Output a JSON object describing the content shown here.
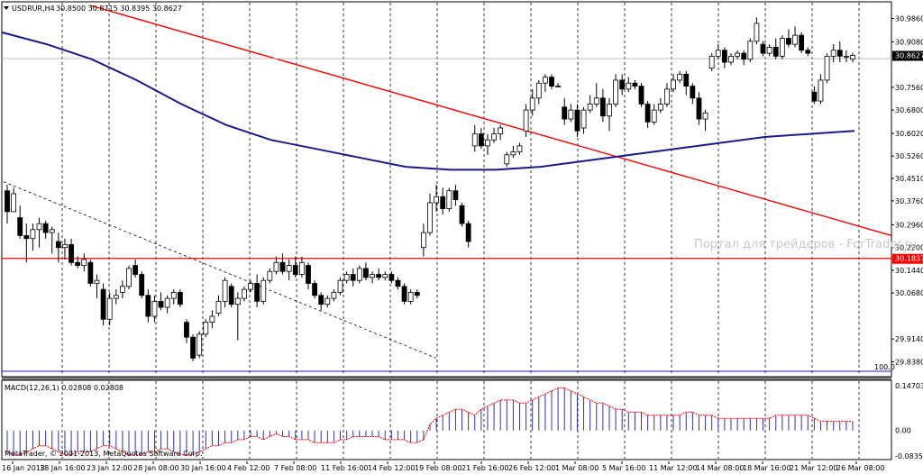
{
  "header": {
    "symbol_text": "USDRUR,H4",
    "ohlc_text": "30.8500 30.8715 30.8395 30.8627"
  },
  "watermark": "Портал для трейдеров - ForTrader.ru",
  "indicator": {
    "label_text": "MACD(12,26,1) 0.02808 0.02808",
    "copyright": "MetaTrader, © 2001-2013, MetaQuotes Software Corp.",
    "axis_labels": [
      "0.14703",
      "0.00",
      "-0.08357"
    ]
  },
  "price_axis": {
    "labels": [
      "30.9860",
      "30.9080",
      "30.7560",
      "30.6800",
      "30.6020",
      "30.5260",
      "30.4510",
      "30.3760",
      "30.2960",
      "30.2200",
      "30.1440",
      "30.0680",
      "29.9140",
      "29.8380"
    ],
    "current_price": "30.8627",
    "hline_price": "30.1837"
  },
  "fib_label": "100.0",
  "time_axis": [
    "16 Jan 2013",
    "18 Jan 16:00",
    "23 Jan 12:00",
    "28 Jan 08:00",
    "30 Jan 16:00",
    "4 Feb 12:00",
    "7 Feb 08:00",
    "11 Feb 16:00",
    "14 Feb 12:00",
    "19 Feb 08:00",
    "21 Feb 16:00",
    "26 Feb 12:00",
    "1 Mar 08:00",
    "5 Mar 16:00",
    "11 Mar 12:00",
    "14 Mar 08:00",
    "18 Mar 16:00",
    "21 Mar 12:00",
    "26 Mar 08:00"
  ],
  "colors": {
    "trendline": "#ff0000",
    "moving_average": "#1a1a8c",
    "support_line": "#ff0000",
    "macd_positive": "#3333aa",
    "macd_signal": "#ff0000",
    "grid": "#000000"
  },
  "chart_data": {
    "type": "candlestick",
    "symbol": "USDRUR",
    "timeframe": "H4",
    "y_range": [
      29.8,
      31.03
    ],
    "horizontal_line": 30.1837,
    "candles": [
      {
        "o": 30.41,
        "h": 30.43,
        "l": 30.3,
        "c": 30.34
      },
      {
        "o": 30.34,
        "h": 30.42,
        "l": 30.35,
        "c": 30.4
      },
      {
        "o": 30.32,
        "h": 30.36,
        "l": 30.25,
        "c": 30.26
      },
      {
        "o": 30.26,
        "h": 30.3,
        "l": 30.17,
        "c": 30.25
      },
      {
        "o": 30.25,
        "h": 30.3,
        "l": 30.21,
        "c": 30.28
      },
      {
        "o": 30.28,
        "h": 30.32,
        "l": 30.22,
        "c": 30.3
      },
      {
        "o": 30.3,
        "h": 30.31,
        "l": 30.25,
        "c": 30.27
      },
      {
        "o": 30.27,
        "h": 30.29,
        "l": 30.2,
        "c": 30.28
      },
      {
        "o": 30.24,
        "h": 30.27,
        "l": 30.17,
        "c": 30.22
      },
      {
        "o": 30.22,
        "h": 30.25,
        "l": 30.18,
        "c": 30.23
      },
      {
        "o": 30.23,
        "h": 30.25,
        "l": 30.16,
        "c": 30.17
      },
      {
        "o": 30.17,
        "h": 30.19,
        "l": 30.15,
        "c": 30.16
      },
      {
        "o": 30.16,
        "h": 30.2,
        "l": 30.14,
        "c": 30.18
      },
      {
        "o": 30.17,
        "h": 30.18,
        "l": 30.09,
        "c": 30.1
      },
      {
        "o": 30.1,
        "h": 30.13,
        "l": 30.05,
        "c": 30.11
      },
      {
        "o": 30.08,
        "h": 30.1,
        "l": 29.96,
        "c": 29.98
      },
      {
        "o": 29.98,
        "h": 30.07,
        "l": 29.96,
        "c": 30.05
      },
      {
        "o": 30.05,
        "h": 30.08,
        "l": 30.03,
        "c": 30.06
      },
      {
        "o": 30.07,
        "h": 30.11,
        "l": 30.05,
        "c": 30.09
      },
      {
        "o": 30.09,
        "h": 30.16,
        "l": 30.08,
        "c": 30.15
      },
      {
        "o": 30.16,
        "h": 30.18,
        "l": 30.12,
        "c": 30.13
      },
      {
        "o": 30.13,
        "h": 30.14,
        "l": 30.05,
        "c": 30.06
      },
      {
        "o": 30.06,
        "h": 30.08,
        "l": 29.97,
        "c": 29.99
      },
      {
        "o": 29.99,
        "h": 30.06,
        "l": 29.97,
        "c": 30.04
      },
      {
        "o": 30.04,
        "h": 30.07,
        "l": 30.01,
        "c": 30.02
      },
      {
        "o": 30.02,
        "h": 30.06,
        "l": 30.0,
        "c": 30.05
      },
      {
        "o": 30.05,
        "h": 30.08,
        "l": 30.03,
        "c": 30.07
      },
      {
        "o": 30.07,
        "h": 30.08,
        "l": 30.02,
        "c": 30.03
      },
      {
        "o": 29.97,
        "h": 29.98,
        "l": 29.9,
        "c": 29.92
      },
      {
        "o": 29.92,
        "h": 29.93,
        "l": 29.84,
        "c": 29.85
      },
      {
        "o": 29.86,
        "h": 29.94,
        "l": 29.85,
        "c": 29.93
      },
      {
        "o": 29.93,
        "h": 29.98,
        "l": 29.92,
        "c": 29.97
      },
      {
        "o": 29.97,
        "h": 30.01,
        "l": 29.95,
        "c": 29.99
      },
      {
        "o": 30.0,
        "h": 30.06,
        "l": 29.99,
        "c": 30.04
      },
      {
        "o": 30.04,
        "h": 30.12,
        "l": 30.02,
        "c": 30.11
      },
      {
        "o": 30.09,
        "h": 30.1,
        "l": 30.02,
        "c": 30.03
      },
      {
        "o": 30.03,
        "h": 30.07,
        "l": 29.91,
        "c": 30.05
      },
      {
        "o": 30.05,
        "h": 30.09,
        "l": 30.04,
        "c": 30.08
      },
      {
        "o": 30.08,
        "h": 30.11,
        "l": 30.07,
        "c": 30.1
      },
      {
        "o": 30.1,
        "h": 30.13,
        "l": 30.02,
        "c": 30.04
      },
      {
        "o": 30.04,
        "h": 30.12,
        "l": 30.03,
        "c": 30.11
      },
      {
        "o": 30.11,
        "h": 30.15,
        "l": 30.1,
        "c": 30.14
      },
      {
        "o": 30.14,
        "h": 30.19,
        "l": 30.13,
        "c": 30.17
      },
      {
        "o": 30.17,
        "h": 30.2,
        "l": 30.13,
        "c": 30.14
      },
      {
        "o": 30.14,
        "h": 30.18,
        "l": 30.11,
        "c": 30.16
      },
      {
        "o": 30.16,
        "h": 30.19,
        "l": 30.12,
        "c": 30.13
      },
      {
        "o": 30.13,
        "h": 30.19,
        "l": 30.12,
        "c": 30.17
      },
      {
        "o": 30.16,
        "h": 30.17,
        "l": 30.08,
        "c": 30.1
      },
      {
        "o": 30.1,
        "h": 30.11,
        "l": 30.05,
        "c": 30.06
      },
      {
        "o": 30.06,
        "h": 30.07,
        "l": 30.01,
        "c": 30.03
      },
      {
        "o": 30.03,
        "h": 30.06,
        "l": 30.02,
        "c": 30.05
      },
      {
        "o": 30.05,
        "h": 30.08,
        "l": 30.04,
        "c": 30.07
      },
      {
        "o": 30.07,
        "h": 30.12,
        "l": 30.06,
        "c": 30.11
      },
      {
        "o": 30.11,
        "h": 30.14,
        "l": 30.1,
        "c": 30.13
      },
      {
        "o": 30.13,
        "h": 30.15,
        "l": 30.09,
        "c": 30.11
      },
      {
        "o": 30.11,
        "h": 30.16,
        "l": 30.1,
        "c": 30.15
      },
      {
        "o": 30.15,
        "h": 30.17,
        "l": 30.11,
        "c": 30.12
      },
      {
        "o": 30.12,
        "h": 30.14,
        "l": 30.1,
        "c": 30.13
      },
      {
        "o": 30.13,
        "h": 30.15,
        "l": 30.11,
        "c": 30.12
      },
      {
        "o": 30.12,
        "h": 30.14,
        "l": 30.11,
        "c": 30.13
      },
      {
        "o": 30.13,
        "h": 30.14,
        "l": 30.1,
        "c": 30.11
      },
      {
        "o": 30.11,
        "h": 30.12,
        "l": 30.08,
        "c": 30.09
      },
      {
        "o": 30.09,
        "h": 30.1,
        "l": 30.03,
        "c": 30.04
      },
      {
        "o": 30.04,
        "h": 30.08,
        "l": 30.03,
        "c": 30.07
      },
      {
        "o": 30.07,
        "h": 30.08,
        "l": 30.05,
        "c": 30.06
      },
      {
        "o": 30.22,
        "h": 30.3,
        "l": 30.19,
        "c": 30.27
      },
      {
        "o": 30.27,
        "h": 30.4,
        "l": 30.26,
        "c": 30.37
      },
      {
        "o": 30.37,
        "h": 30.43,
        "l": 30.34,
        "c": 30.39
      },
      {
        "o": 30.39,
        "h": 30.42,
        "l": 30.33,
        "c": 30.35
      },
      {
        "o": 30.35,
        "h": 30.42,
        "l": 30.34,
        "c": 30.41
      },
      {
        "o": 30.41,
        "h": 30.43,
        "l": 30.36,
        "c": 30.38
      },
      {
        "o": 30.36,
        "h": 30.37,
        "l": 30.29,
        "c": 30.3
      },
      {
        "o": 30.3,
        "h": 30.31,
        "l": 30.22,
        "c": 30.24
      },
      {
        "o": 30.56,
        "h": 30.63,
        "l": 30.54,
        "c": 30.6
      },
      {
        "o": 30.6,
        "h": 30.62,
        "l": 30.55,
        "c": 30.56
      },
      {
        "o": 30.56,
        "h": 30.6,
        "l": 30.53,
        "c": 30.58
      },
      {
        "o": 30.58,
        "h": 30.62,
        "l": 30.57,
        "c": 30.6
      },
      {
        "o": 30.6,
        "h": 30.63,
        "l": 30.58,
        "c": 30.62
      },
      {
        "o": 30.5,
        "h": 30.54,
        "l": 30.49,
        "c": 30.53
      },
      {
        "o": 30.53,
        "h": 30.56,
        "l": 30.52,
        "c": 30.54
      },
      {
        "o": 30.54,
        "h": 30.57,
        "l": 30.53,
        "c": 30.56
      },
      {
        "o": 30.61,
        "h": 30.7,
        "l": 30.59,
        "c": 30.68
      },
      {
        "o": 30.68,
        "h": 30.75,
        "l": 30.66,
        "c": 30.72
      },
      {
        "o": 30.72,
        "h": 30.78,
        "l": 30.7,
        "c": 30.77
      },
      {
        "o": 30.77,
        "h": 30.8,
        "l": 30.74,
        "c": 30.79
      },
      {
        "o": 30.79,
        "h": 30.8,
        "l": 30.75,
        "c": 30.76
      },
      {
        "o": 30.76,
        "h": 30.77,
        "l": 30.76,
        "c": 30.76
      },
      {
        "o": 30.69,
        "h": 30.72,
        "l": 30.63,
        "c": 30.65
      },
      {
        "o": 30.65,
        "h": 30.7,
        "l": 30.64,
        "c": 30.68
      },
      {
        "o": 30.68,
        "h": 30.7,
        "l": 30.59,
        "c": 30.61
      },
      {
        "o": 30.62,
        "h": 30.69,
        "l": 30.6,
        "c": 30.68
      },
      {
        "o": 30.68,
        "h": 30.73,
        "l": 30.67,
        "c": 30.7
      },
      {
        "o": 30.7,
        "h": 30.77,
        "l": 30.69,
        "c": 30.72
      },
      {
        "o": 30.72,
        "h": 30.75,
        "l": 30.64,
        "c": 30.66
      },
      {
        "o": 30.66,
        "h": 30.72,
        "l": 30.61,
        "c": 30.7
      },
      {
        "o": 30.7,
        "h": 30.8,
        "l": 30.69,
        "c": 30.78
      },
      {
        "o": 30.78,
        "h": 30.8,
        "l": 30.73,
        "c": 30.75
      },
      {
        "o": 30.75,
        "h": 30.79,
        "l": 30.74,
        "c": 30.77
      },
      {
        "o": 30.77,
        "h": 30.78,
        "l": 30.75,
        "c": 30.76
      },
      {
        "o": 30.76,
        "h": 30.77,
        "l": 30.69,
        "c": 30.7
      },
      {
        "o": 30.7,
        "h": 30.71,
        "l": 30.62,
        "c": 30.64
      },
      {
        "o": 30.64,
        "h": 30.7,
        "l": 30.63,
        "c": 30.68
      },
      {
        "o": 30.68,
        "h": 30.72,
        "l": 30.67,
        "c": 30.7
      },
      {
        "o": 30.7,
        "h": 30.77,
        "l": 30.69,
        "c": 30.75
      },
      {
        "o": 30.75,
        "h": 30.8,
        "l": 30.74,
        "c": 30.78
      },
      {
        "o": 30.78,
        "h": 30.81,
        "l": 30.77,
        "c": 30.8
      },
      {
        "o": 30.8,
        "h": 30.81,
        "l": 30.73,
        "c": 30.76
      },
      {
        "o": 30.76,
        "h": 30.77,
        "l": 30.7,
        "c": 30.72
      },
      {
        "o": 30.72,
        "h": 30.74,
        "l": 30.63,
        "c": 30.65
      },
      {
        "o": 30.65,
        "h": 30.68,
        "l": 30.61,
        "c": 30.67
      },
      {
        "o": 30.82,
        "h": 30.87,
        "l": 30.81,
        "c": 30.86
      },
      {
        "o": 30.86,
        "h": 30.9,
        "l": 30.85,
        "c": 30.88
      },
      {
        "o": 30.88,
        "h": 30.89,
        "l": 30.82,
        "c": 30.84
      },
      {
        "o": 30.84,
        "h": 30.87,
        "l": 30.83,
        "c": 30.86
      },
      {
        "o": 30.86,
        "h": 30.88,
        "l": 30.85,
        "c": 30.87
      },
      {
        "o": 30.87,
        "h": 30.88,
        "l": 30.83,
        "c": 30.85
      },
      {
        "o": 30.85,
        "h": 30.92,
        "l": 30.84,
        "c": 30.91
      },
      {
        "o": 30.91,
        "h": 30.99,
        "l": 30.9,
        "c": 30.97
      },
      {
        "o": 30.9,
        "h": 30.91,
        "l": 30.86,
        "c": 30.87
      },
      {
        "o": 30.87,
        "h": 30.9,
        "l": 30.86,
        "c": 30.89
      },
      {
        "o": 30.89,
        "h": 30.92,
        "l": 30.85,
        "c": 30.86
      },
      {
        "o": 30.86,
        "h": 30.93,
        "l": 30.85,
        "c": 30.92
      },
      {
        "o": 30.92,
        "h": 30.95,
        "l": 30.89,
        "c": 30.9
      },
      {
        "o": 30.9,
        "h": 30.96,
        "l": 30.89,
        "c": 30.93
      },
      {
        "o": 30.93,
        "h": 30.94,
        "l": 30.87,
        "c": 30.88
      },
      {
        "o": 30.88,
        "h": 30.89,
        "l": 30.86,
        "c": 30.87
      },
      {
        "o": 30.74,
        "h": 30.76,
        "l": 30.7,
        "c": 30.71
      },
      {
        "o": 30.71,
        "h": 30.8,
        "l": 30.7,
        "c": 30.78
      },
      {
        "o": 30.78,
        "h": 30.87,
        "l": 30.77,
        "c": 30.86
      },
      {
        "o": 30.86,
        "h": 30.9,
        "l": 30.84,
        "c": 30.88
      },
      {
        "o": 30.88,
        "h": 30.91,
        "l": 30.84,
        "c": 30.86
      },
      {
        "o": 30.86,
        "h": 30.88,
        "l": 30.84,
        "c": 30.86
      },
      {
        "o": 30.85,
        "h": 30.8715,
        "l": 30.8395,
        "c": 30.8627
      }
    ],
    "moving_average": [
      30.94,
      30.9,
      30.85,
      30.78,
      30.7,
      30.63,
      30.58,
      30.55,
      30.52,
      30.49,
      30.48,
      30.48,
      30.49,
      30.51,
      30.53,
      30.55,
      30.57,
      30.59,
      30.6,
      30.61
    ],
    "trendline": {
      "start": 31.03,
      "end": 30.26
    },
    "dashed_line": {
      "start": 30.44,
      "end": 29.85
    },
    "macd": [
      -0.07,
      -0.08,
      -0.08,
      -0.07,
      -0.06,
      -0.05,
      -0.05,
      -0.06,
      -0.07,
      -0.08,
      -0.08,
      -0.07,
      -0.07,
      -0.07,
      -0.06,
      -0.05,
      -0.05,
      -0.06,
      -0.07,
      -0.08,
      -0.08,
      -0.08,
      -0.07,
      -0.07,
      -0.06,
      -0.06,
      -0.07,
      -0.08,
      -0.08,
      -0.08,
      -0.07,
      -0.06,
      -0.05,
      -0.05,
      -0.04,
      -0.04,
      -0.03,
      -0.03,
      -0.02,
      -0.02,
      -0.03,
      -0.02,
      -0.01,
      -0.02,
      -0.02,
      -0.03,
      -0.03,
      -0.03,
      -0.04,
      -0.04,
      -0.04,
      -0.04,
      -0.03,
      -0.03,
      -0.02,
      -0.02,
      -0.02,
      -0.02,
      -0.02,
      -0.03,
      -0.03,
      -0.03,
      -0.03,
      -0.04,
      -0.04,
      -0.03,
      0.02,
      0.04,
      0.05,
      0.06,
      0.07,
      0.07,
      0.06,
      0.05,
      0.07,
      0.08,
      0.09,
      0.1,
      0.1,
      0.1,
      0.09,
      0.09,
      0.1,
      0.11,
      0.12,
      0.13,
      0.14,
      0.14,
      0.13,
      0.12,
      0.11,
      0.1,
      0.09,
      0.09,
      0.08,
      0.07,
      0.07,
      0.06,
      0.06,
      0.06,
      0.05,
      0.05,
      0.05,
      0.05,
      0.05,
      0.05,
      0.06,
      0.06,
      0.05,
      0.05,
      0.05,
      0.04,
      0.04,
      0.04,
      0.04,
      0.04,
      0.04,
      0.04,
      0.04,
      0.04,
      0.05,
      0.05,
      0.05,
      0.05,
      0.05,
      0.05,
      0.04,
      0.03,
      0.03,
      0.03,
      0.03,
      0.03,
      0.03
    ],
    "macd_range": [
      -0.08357,
      0.14703
    ]
  }
}
